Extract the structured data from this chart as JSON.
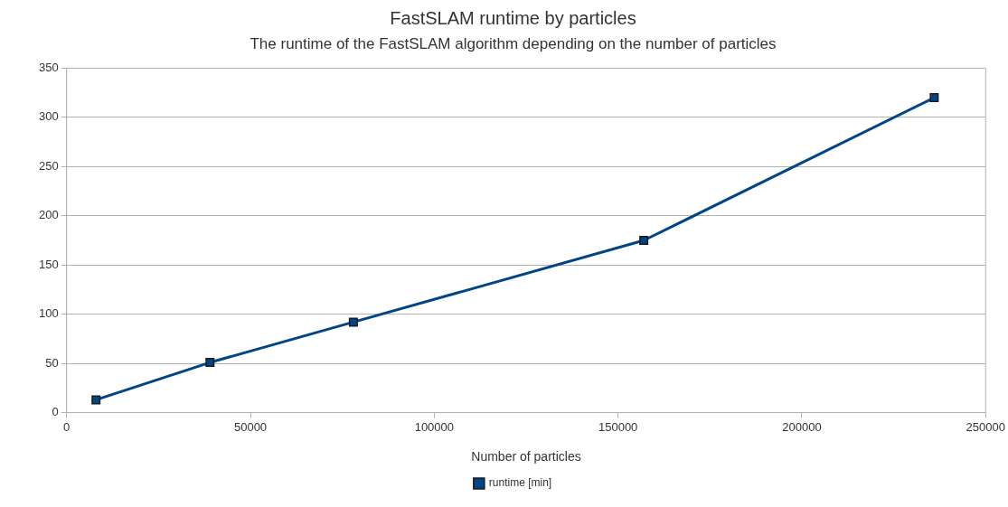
{
  "chart_data": {
    "type": "line",
    "title": "FastSLAM runtime by particles",
    "subtitle": "The runtime of the FastSLAM algorithm depending on the number of particles",
    "xlabel": "Number of particles",
    "x": [
      8000,
      39000,
      78000,
      157000,
      236000
    ],
    "series": [
      {
        "name": "runtime [min]",
        "color": "#004586",
        "values": [
          13,
          51,
          92,
          175,
          320
        ]
      }
    ],
    "xlim": [
      0,
      250000
    ],
    "xticks": [
      0,
      50000,
      100000,
      150000,
      200000,
      250000
    ],
    "ylim": [
      0,
      350
    ],
    "yticks": [
      0,
      50,
      100,
      150,
      200,
      250,
      300,
      350
    ],
    "grid": "y",
    "legend": "bottom",
    "marker": "square",
    "line_style": "solid"
  }
}
